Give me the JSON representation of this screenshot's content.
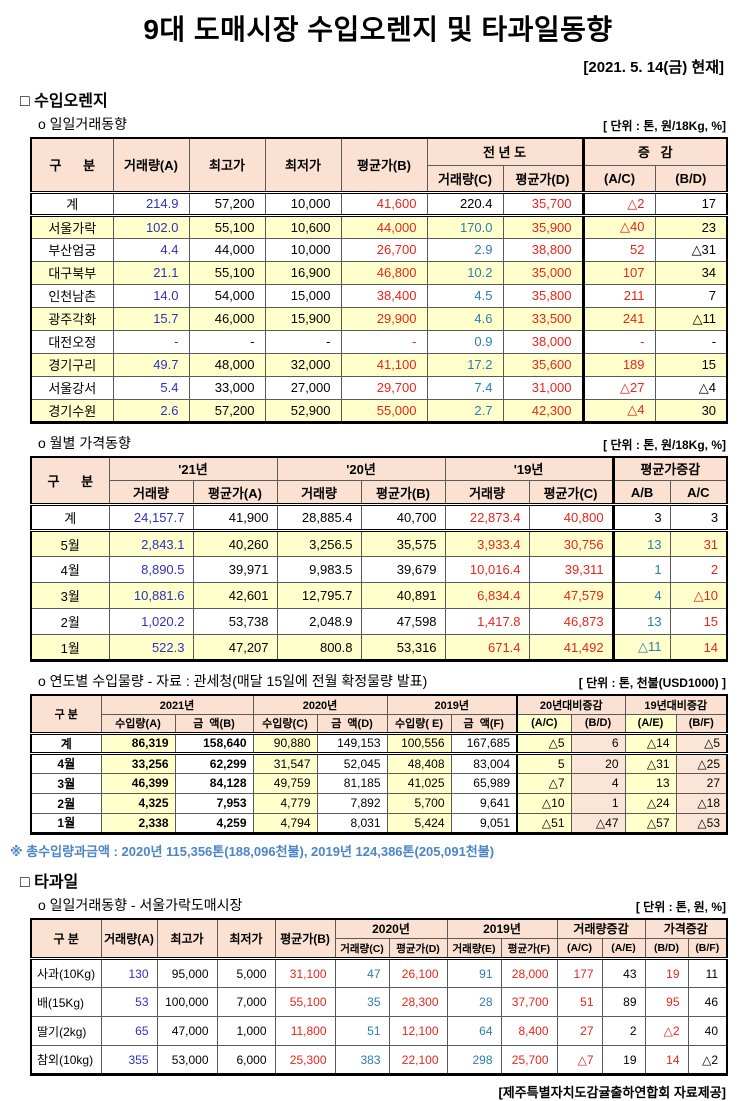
{
  "page": {
    "title": "9대 도매시장 수입오렌지 및 타과일동향",
    "date": "[2021. 5. 14(금) 현재]",
    "provider_note": "[제주특별자치도감귤출하연합회 자료제공]"
  },
  "sections": {
    "orange_heading": "□ 수입오렌지",
    "fruit_heading": "□ 타과일"
  },
  "subsections": {
    "daily": {
      "label": "o  일일거래동향",
      "unit": "[ 단위 : 톤, 원/18Kg, %]"
    },
    "monthly": {
      "label": "o  월별 가격동향",
      "unit": "[ 단위 : 톤, 원/18Kg, %]"
    },
    "yearly": {
      "label": "o  연도별 수입물량 - 자료 : 관세청(매달 15일에 전월 확정물량 발표)",
      "unit": "[ 단위 : 톤, 천불(USD1000) ]"
    },
    "fruit_daily": {
      "label": "o  일일거래동향 - 서울가락도매시장",
      "unit": "[ 단위 : 톤, 원, %]"
    }
  },
  "footnote": "※ 총수입량과금액 : 2020년 115,356톤(188,096천불),  2019년 124,386톤(205,091천불)",
  "palette": {
    "header_bg": "#FAE1D2",
    "row_alt_bg": "#FFFFCC",
    "peach_cell_bg": "#FBE5D6",
    "value_blue": "#3030C0",
    "value_teal": "#2A7FAE",
    "value_red": "#E8251A",
    "note_blue": "#4A86C8"
  },
  "tables": [
    {
      "id": "t1",
      "cls": "t1 dblb",
      "header": [
        [
          {
            "t": "구      분",
            "rs": 2
          },
          {
            "t": "거래량(A)",
            "rs": 2
          },
          {
            "t": "최고가",
            "rs": 2
          },
          {
            "t": "최저가",
            "rs": 2
          },
          {
            "t": "평균가(B)",
            "rs": 2
          },
          {
            "t": "전 년 도",
            "cs": 2
          },
          {
            "t": "증   감",
            "cs": 2
          }
        ],
        [
          {
            "t": "거래량(C)"
          },
          {
            "t": "평균가(D)"
          },
          {
            "t": "(A/C)"
          },
          {
            "t": "(B/D)"
          }
        ]
      ],
      "col_colors": [
        "blue",
        "black",
        "black",
        "red",
        "teal",
        "red",
        "red",
        "black"
      ],
      "rows": [
        {
          "label": "계",
          "colors": [
            "blue",
            "black",
            "black",
            "red",
            "black",
            "red",
            "red",
            "black"
          ],
          "cells": [
            "214.9",
            "57,200",
            "10,000",
            "41,600",
            "220.4",
            "35,700",
            "△2",
            "17"
          ]
        },
        {
          "label": "서울가락",
          "cells": [
            "102.0",
            "55,100",
            "10,600",
            "44,000",
            "170.0",
            "35,900",
            "△40",
            "23"
          ]
        },
        {
          "label": "부산엄궁",
          "cells": [
            "4.4",
            "44,000",
            "10,000",
            "26,700",
            "2.9",
            "38,800",
            "52",
            "△31"
          ]
        },
        {
          "label": "대구북부",
          "cells": [
            "21.1",
            "55,100",
            "16,900",
            "46,800",
            "10.2",
            "35,000",
            "107",
            "34"
          ]
        },
        {
          "label": "인천남촌",
          "cells": [
            "14.0",
            "54,000",
            "15,000",
            "38,400",
            "4.5",
            "35,800",
            "211",
            "7"
          ]
        },
        {
          "label": "광주각화",
          "cells": [
            "15.7",
            "46,000",
            "15,900",
            "29,900",
            "4.6",
            "33,500",
            "241",
            "△11"
          ]
        },
        {
          "label": "대전오정",
          "cells": [
            "-",
            "-",
            "-",
            "-",
            "0.9",
            "38,000",
            "-",
            "-"
          ]
        },
        {
          "label": "경기구리",
          "cells": [
            "49.7",
            "48,000",
            "32,000",
            "41,100",
            "17.2",
            "35,600",
            "189",
            "15"
          ]
        },
        {
          "label": "서울강서",
          "cells": [
            "5.4",
            "33,000",
            "27,000",
            "29,700",
            "7.4",
            "31,000",
            "△27",
            "△4"
          ]
        },
        {
          "label": "경기수원",
          "cells": [
            "2.6",
            "57,200",
            "52,900",
            "55,000",
            "2.7",
            "42,300",
            "△4",
            "30"
          ]
        }
      ]
    },
    {
      "id": "t2",
      "cls": "t2 dblb",
      "header": [
        [
          {
            "t": "구      분",
            "rs": 2
          },
          {
            "t": "'21년",
            "cs": 2
          },
          {
            "t": "'20년",
            "cs": 2
          },
          {
            "t": "'19년",
            "cs": 2
          },
          {
            "t": "평균가증감",
            "cs": 2
          }
        ],
        [
          {
            "t": "거래량"
          },
          {
            "t": "평균가(A)"
          },
          {
            "t": "거래량"
          },
          {
            "t": "평균가(B)"
          },
          {
            "t": "거래량"
          },
          {
            "t": "평균가(C)"
          },
          {
            "t": "A/B"
          },
          {
            "t": "A/C"
          }
        ]
      ],
      "col_colors": [
        "blue",
        "black",
        "black",
        "black",
        "red",
        "red",
        "teal",
        "red"
      ],
      "rows": [
        {
          "label": "계",
          "colors": [
            "blue",
            "black",
            "black",
            "black",
            "red",
            "red",
            "black",
            "black"
          ],
          "cells": [
            "24,157.7",
            "41,900",
            "28,885.4",
            "40,700",
            "22,873.4",
            "40,800",
            "3",
            "3"
          ]
        },
        {
          "label": "5월",
          "cells": [
            "2,843.1",
            "40,260",
            "3,256.5",
            "35,575",
            "3,933.4",
            "30,756",
            "13",
            "31"
          ]
        },
        {
          "label": "4월",
          "cells": [
            "8,890.5",
            "39,971",
            "9,983.5",
            "39,679",
            "10,016.4",
            "39,311",
            "1",
            "2"
          ]
        },
        {
          "label": "3월",
          "cells": [
            "10,881.6",
            "42,601",
            "12,795.7",
            "40,891",
            "6,834.4",
            "47,579",
            "4",
            "△10"
          ]
        },
        {
          "label": "2월",
          "cells": [
            "1,020.2",
            "53,738",
            "2,048.9",
            "47,598",
            "1,417.8",
            "46,873",
            "13",
            "15"
          ]
        },
        {
          "label": "1월",
          "cells": [
            "522.3",
            "47,207",
            "800.8",
            "53,316",
            "671.4",
            "41,492",
            "△11",
            "14"
          ]
        }
      ]
    },
    {
      "id": "t3",
      "cls": "t3 dblb",
      "header": [
        [
          {
            "t": "구 분",
            "rs": 2
          },
          {
            "t": "2021년",
            "cs": 2
          },
          {
            "t": "2020년",
            "cs": 2
          },
          {
            "t": "2019년",
            "cs": 2
          },
          {
            "t": "20년대비증감",
            "cs": 2
          },
          {
            "t": "19년대비증감",
            "cs": 2
          }
        ],
        [
          {
            "t": "수입량(A)"
          },
          {
            "t": "금  액(B)"
          },
          {
            "t": "수입량(C)"
          },
          {
            "t": "금  액(D)"
          },
          {
            "t": "수입량( E)"
          },
          {
            "t": "금  액(F)"
          },
          {
            "t": "(A/C)"
          },
          {
            "t": "(B/D)"
          },
          {
            "t": "(A/E)"
          },
          {
            "t": "(B/F)"
          }
        ]
      ],
      "col_colors": [
        "black",
        "black",
        "black",
        "black",
        "black",
        "black",
        "black",
        "black",
        "black",
        "black"
      ],
      "col_bg": [
        "y",
        "",
        "y",
        "",
        "y",
        "",
        "y",
        "p",
        "y",
        "p"
      ],
      "col_bold": [
        true,
        true,
        false,
        false,
        false,
        false,
        false,
        false,
        false,
        false
      ],
      "rows": [
        {
          "label": "계",
          "cells": [
            "86,319",
            "158,640",
            "90,880",
            "149,153",
            "100,556",
            "167,685",
            "△5",
            "6",
            "△14",
            "△5"
          ]
        },
        {
          "label": "4월",
          "cells": [
            "33,256",
            "62,299",
            "31,547",
            "52,045",
            "48,408",
            "83,004",
            "5",
            "20",
            "△31",
            "△25"
          ]
        },
        {
          "label": "3월",
          "cells": [
            "46,399",
            "84,128",
            "49,759",
            "81,185",
            "41,025",
            "65,989",
            "△7",
            "4",
            "13",
            "27"
          ]
        },
        {
          "label": "2월",
          "cells": [
            "4,325",
            "7,953",
            "4,779",
            "7,892",
            "5,700",
            "9,641",
            "△10",
            "1",
            "△24",
            "△18"
          ]
        },
        {
          "label": "1월",
          "cells": [
            "2,338",
            "4,259",
            "4,794",
            "8,031",
            "5,424",
            "9,051",
            "△51",
            "△47",
            "△57",
            "△53"
          ]
        }
      ]
    },
    {
      "id": "t4",
      "cls": "t4",
      "header": [
        [
          {
            "t": "구 분",
            "rs": 2
          },
          {
            "t": "거래량(A)",
            "rs": 2
          },
          {
            "t": "최고가",
            "rs": 2
          },
          {
            "t": "최저가",
            "rs": 2
          },
          {
            "t": "평균가(B)",
            "rs": 2
          },
          {
            "t": "2020년",
            "cs": 2
          },
          {
            "t": "2019년",
            "cs": 2
          },
          {
            "t": "거래량증감",
            "cs": 2
          },
          {
            "t": "가격증감",
            "cs": 2
          }
        ],
        [
          {
            "t": "거래량(C)"
          },
          {
            "t": "평균가(D)"
          },
          {
            "t": "거래량(E)"
          },
          {
            "t": "평균가(F)"
          },
          {
            "t": "(A/C)"
          },
          {
            "t": "(A/E)"
          },
          {
            "t": "(B/D)"
          },
          {
            "t": "(B/F)"
          }
        ]
      ],
      "col_colors": [
        "blue",
        "black",
        "black",
        "red",
        "teal",
        "red",
        "teal",
        "red",
        "red",
        "black",
        "red",
        "black"
      ],
      "rows": [
        {
          "label": "사과(10Kg)",
          "cells": [
            "130",
            "95,000",
            "5,000",
            "31,100",
            "47",
            "26,100",
            "91",
            "28,000",
            "177",
            "43",
            "19",
            "11"
          ]
        },
        {
          "label": "배(15Kg)",
          "cells": [
            "53",
            "100,000",
            "7,000",
            "55,100",
            "35",
            "28,300",
            "28",
            "37,700",
            "51",
            "89",
            "95",
            "46"
          ]
        },
        {
          "label": "딸기(2kg)",
          "cells": [
            "65",
            "47,000",
            "1,000",
            "11,800",
            "51",
            "12,100",
            "64",
            "8,400",
            "27",
            "2",
            "△2",
            "40"
          ]
        },
        {
          "label": "참외(10kg)",
          "cells": [
            "355",
            "53,000",
            "6,000",
            "25,300",
            "383",
            "22,100",
            "298",
            "25,700",
            "△7",
            "19",
            "14",
            "△2"
          ]
        }
      ]
    }
  ]
}
